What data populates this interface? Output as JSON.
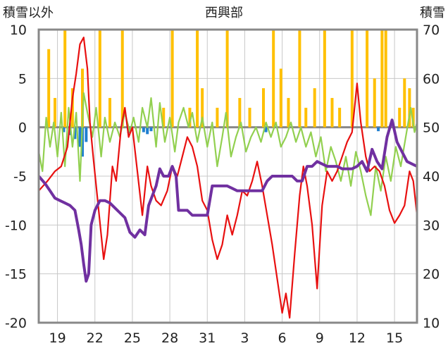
{
  "chart_data": {
    "type": "line",
    "title": "西興部",
    "left_axis": {
      "label": "積雪以外",
      "ticks": [
        "10",
        "5",
        "0",
        "-5",
        "-10",
        "-15",
        "-20"
      ],
      "ylim": [
        -20,
        10
      ]
    },
    "right_axis": {
      "label": "積雪",
      "ticks": [
        "70",
        "60",
        "50",
        "40",
        "30",
        "20",
        "10"
      ],
      "ylim": [
        10,
        70
      ]
    },
    "x_ticks": [
      "19",
      "22",
      "25",
      "28",
      "31",
      "3",
      "6",
      "9",
      "12",
      "15"
    ],
    "xlim": [
      17.5,
      47.8
    ],
    "x_tick_positions": [
      19,
      22,
      25,
      28,
      31,
      34,
      37,
      40,
      43,
      46
    ],
    "grid": true,
    "colors": {
      "precipitation": "#ffc000",
      "negative_bars": "#1f7fd0",
      "temperature": "#e81010",
      "green_series": "#92d050",
      "snow_depth": "#7030a0",
      "frame": "#888888",
      "zero_line": "#888888"
    },
    "series": [
      {
        "axis": "left",
        "style": "bar",
        "color": "#ffc000",
        "points": [
          [
            18.3,
            8
          ],
          [
            18.8,
            3
          ],
          [
            19.6,
            10
          ],
          [
            20.2,
            4
          ],
          [
            21.0,
            6
          ],
          [
            22.4,
            10
          ],
          [
            23.2,
            3
          ],
          [
            24.2,
            10
          ],
          [
            27.5,
            2
          ],
          [
            28.2,
            10
          ],
          [
            29.6,
            2
          ],
          [
            30.2,
            10
          ],
          [
            30.6,
            4
          ],
          [
            31.8,
            2
          ],
          [
            32.6,
            10
          ],
          [
            33.6,
            3
          ],
          [
            34.4,
            2
          ],
          [
            35.5,
            4
          ],
          [
            36.3,
            10
          ],
          [
            36.9,
            6
          ],
          [
            37.5,
            3
          ],
          [
            38.4,
            10
          ],
          [
            38.9,
            2
          ],
          [
            39.6,
            4
          ],
          [
            40.4,
            10
          ],
          [
            41.0,
            3
          ],
          [
            41.6,
            2
          ],
          [
            42.6,
            10
          ],
          [
            43.8,
            10
          ],
          [
            44.4,
            5
          ],
          [
            45.0,
            10
          ],
          [
            45.3,
            10
          ],
          [
            46.4,
            2
          ],
          [
            46.8,
            5
          ],
          [
            47.2,
            4
          ],
          [
            47.5,
            2
          ]
        ]
      },
      {
        "axis": "left",
        "style": "bar",
        "color": "#1f7fd0",
        "points": [
          [
            19.5,
            -0.5
          ],
          [
            20.0,
            -0.8
          ],
          [
            20.4,
            -1.2
          ],
          [
            20.8,
            -2.0
          ],
          [
            21.0,
            -3.0
          ],
          [
            21.3,
            -1.5
          ],
          [
            24.7,
            -0.6
          ],
          [
            25.9,
            -0.5
          ],
          [
            26.2,
            -0.7
          ],
          [
            26.5,
            -0.4
          ],
          [
            35.7,
            -0.5
          ],
          [
            44.7,
            -0.4
          ]
        ]
      },
      {
        "axis": "left",
        "style": "line",
        "color": "#e81010",
        "points": [
          [
            17.5,
            -6.5
          ],
          [
            18.2,
            -5.5
          ],
          [
            18.8,
            -4.5
          ],
          [
            19.3,
            -4.0
          ],
          [
            19.8,
            -2.0
          ],
          [
            20.2,
            3.0
          ],
          [
            20.5,
            5.5
          ],
          [
            20.8,
            8.5
          ],
          [
            21.1,
            9.2
          ],
          [
            21.4,
            6.0
          ],
          [
            21.6,
            0.5
          ],
          [
            21.9,
            -3.5
          ],
          [
            22.3,
            -8.5
          ],
          [
            22.7,
            -13.5
          ],
          [
            23.0,
            -11.0
          ],
          [
            23.4,
            -4.0
          ],
          [
            23.7,
            -5.5
          ],
          [
            24.1,
            0.0
          ],
          [
            24.4,
            2.0
          ],
          [
            24.7,
            -1.0
          ],
          [
            25.0,
            0.0
          ],
          [
            25.4,
            -4.5
          ],
          [
            25.8,
            -9.0
          ],
          [
            26.2,
            -4.0
          ],
          [
            26.5,
            -6.0
          ],
          [
            26.9,
            -7.5
          ],
          [
            27.3,
            -8.0
          ],
          [
            27.8,
            -6.5
          ],
          [
            28.2,
            -4.0
          ],
          [
            28.6,
            -5.0
          ],
          [
            29.0,
            -3.0
          ],
          [
            29.4,
            -1.0
          ],
          [
            29.8,
            -2.0
          ],
          [
            30.2,
            -4.0
          ],
          [
            30.6,
            -7.5
          ],
          [
            31.0,
            -8.5
          ],
          [
            31.4,
            -11.5
          ],
          [
            31.8,
            -13.5
          ],
          [
            32.2,
            -12.0
          ],
          [
            32.6,
            -9.0
          ],
          [
            33.0,
            -11.0
          ],
          [
            33.4,
            -9.0
          ],
          [
            33.8,
            -6.5
          ],
          [
            34.2,
            -7.0
          ],
          [
            34.6,
            -5.5
          ],
          [
            35.0,
            -3.5
          ],
          [
            35.4,
            -6.0
          ],
          [
            35.8,
            -9.0
          ],
          [
            36.2,
            -12.0
          ],
          [
            36.6,
            -15.5
          ],
          [
            37.0,
            -19.0
          ],
          [
            37.3,
            -17.0
          ],
          [
            37.6,
            -19.5
          ],
          [
            38.0,
            -13.0
          ],
          [
            38.4,
            -7.0
          ],
          [
            38.7,
            -4.0
          ],
          [
            39.0,
            -6.0
          ],
          [
            39.4,
            -10.0
          ],
          [
            39.8,
            -16.5
          ],
          [
            40.2,
            -8.0
          ],
          [
            40.6,
            -4.5
          ],
          [
            41.0,
            -5.5
          ],
          [
            41.4,
            -4.5
          ],
          [
            41.8,
            -3.0
          ],
          [
            42.2,
            -1.5
          ],
          [
            42.6,
            -0.5
          ],
          [
            43.0,
            4.5
          ],
          [
            43.3,
            0.5
          ],
          [
            43.7,
            -3.0
          ],
          [
            44.0,
            -4.5
          ],
          [
            44.4,
            -4.0
          ],
          [
            44.8,
            -4.5
          ],
          [
            45.2,
            -6.0
          ],
          [
            45.6,
            -8.5
          ],
          [
            46.0,
            -9.8
          ],
          [
            46.4,
            -9.0
          ],
          [
            46.8,
            -8.0
          ],
          [
            47.2,
            -4.5
          ],
          [
            47.5,
            -5.5
          ],
          [
            47.8,
            -9.0
          ]
        ]
      },
      {
        "axis": "left",
        "style": "line",
        "color": "#92d050",
        "points": [
          [
            17.5,
            -2.5
          ],
          [
            17.8,
            -4.5
          ],
          [
            18.1,
            1.0
          ],
          [
            18.4,
            -2.0
          ],
          [
            18.7,
            0.5
          ],
          [
            19.0,
            -3.0
          ],
          [
            19.3,
            1.5
          ],
          [
            19.6,
            -4.0
          ],
          [
            19.9,
            2.0
          ],
          [
            20.2,
            -2.0
          ],
          [
            20.5,
            1.5
          ],
          [
            20.8,
            -5.5
          ],
          [
            21.1,
            3.5
          ],
          [
            21.4,
            1.5
          ],
          [
            21.8,
            -1.0
          ],
          [
            22.1,
            2.0
          ],
          [
            22.5,
            -3.0
          ],
          [
            22.8,
            1.0
          ],
          [
            23.2,
            -1.5
          ],
          [
            23.6,
            0.5
          ],
          [
            24.0,
            -1.0
          ],
          [
            24.4,
            1.5
          ],
          [
            24.8,
            -0.5
          ],
          [
            25.1,
            1.0
          ],
          [
            25.5,
            -1.5
          ],
          [
            25.8,
            2.0
          ],
          [
            26.2,
            0.0
          ],
          [
            26.5,
            3.0
          ],
          [
            26.9,
            -2.0
          ],
          [
            27.2,
            2.5
          ],
          [
            27.6,
            -1.5
          ],
          [
            28.0,
            1.0
          ],
          [
            28.4,
            -2.5
          ],
          [
            28.7,
            0.5
          ],
          [
            29.1,
            2.0
          ],
          [
            29.5,
            0.0
          ],
          [
            29.8,
            1.5
          ],
          [
            30.2,
            -1.5
          ],
          [
            30.6,
            1.0
          ],
          [
            31.0,
            -2.0
          ],
          [
            31.4,
            0.5
          ],
          [
            31.8,
            -4.0
          ],
          [
            32.2,
            -1.0
          ],
          [
            32.5,
            1.5
          ],
          [
            32.9,
            -3.0
          ],
          [
            33.3,
            -1.0
          ],
          [
            33.7,
            0.5
          ],
          [
            34.1,
            -2.5
          ],
          [
            34.5,
            -1.0
          ],
          [
            34.9,
            0.0
          ],
          [
            35.3,
            -1.5
          ],
          [
            35.7,
            0.5
          ],
          [
            36.1,
            -1.0
          ],
          [
            36.5,
            0.5
          ],
          [
            36.9,
            -2.0
          ],
          [
            37.3,
            -1.0
          ],
          [
            37.7,
            0.5
          ],
          [
            38.1,
            -1.5
          ],
          [
            38.5,
            0.0
          ],
          [
            38.9,
            -2.0
          ],
          [
            39.3,
            -0.5
          ],
          [
            39.7,
            -3.0
          ],
          [
            40.1,
            -1.0
          ],
          [
            40.5,
            -4.5
          ],
          [
            40.9,
            -2.0
          ],
          [
            41.3,
            -3.5
          ],
          [
            41.7,
            -5.5
          ],
          [
            42.1,
            -3.0
          ],
          [
            42.5,
            -6.0
          ],
          [
            42.9,
            -2.5
          ],
          [
            43.3,
            -4.5
          ],
          [
            43.7,
            -7.0
          ],
          [
            44.1,
            -9.0
          ],
          [
            44.5,
            -4.0
          ],
          [
            44.9,
            -6.5
          ],
          [
            45.3,
            -3.0
          ],
          [
            45.7,
            -5.5
          ],
          [
            46.1,
            -2.0
          ],
          [
            46.5,
            -4.0
          ],
          [
            46.9,
            -1.0
          ],
          [
            47.3,
            2.0
          ],
          [
            47.6,
            -0.5
          ],
          [
            47.8,
            0.5
          ]
        ]
      },
      {
        "axis": "right",
        "style": "line",
        "color": "#7030a0",
        "points": [
          [
            17.5,
            40
          ],
          [
            18.0,
            38.5
          ],
          [
            18.4,
            37
          ],
          [
            18.8,
            35.5
          ],
          [
            19.2,
            35
          ],
          [
            19.6,
            34.5
          ],
          [
            20.0,
            34
          ],
          [
            20.4,
            33
          ],
          [
            20.7,
            29
          ],
          [
            20.9,
            26
          ],
          [
            21.1,
            22
          ],
          [
            21.3,
            18.5
          ],
          [
            21.5,
            20
          ],
          [
            21.7,
            30
          ],
          [
            22.0,
            33
          ],
          [
            22.4,
            35
          ],
          [
            22.8,
            35
          ],
          [
            23.2,
            34.5
          ],
          [
            23.6,
            33.5
          ],
          [
            24.0,
            32.5
          ],
          [
            24.4,
            31.5
          ],
          [
            24.8,
            28.5
          ],
          [
            25.2,
            27.5
          ],
          [
            25.6,
            29
          ],
          [
            26.0,
            28
          ],
          [
            26.3,
            34
          ],
          [
            26.6,
            36
          ],
          [
            26.9,
            38
          ],
          [
            27.2,
            41.5
          ],
          [
            27.5,
            40
          ],
          [
            27.9,
            40
          ],
          [
            28.2,
            42
          ],
          [
            28.5,
            40
          ],
          [
            28.7,
            33
          ],
          [
            29.0,
            33
          ],
          [
            29.4,
            33
          ],
          [
            29.8,
            32
          ],
          [
            30.2,
            32
          ],
          [
            30.6,
            32
          ],
          [
            31.0,
            32
          ],
          [
            31.4,
            38
          ],
          [
            31.8,
            38
          ],
          [
            32.2,
            38
          ],
          [
            32.6,
            38
          ],
          [
            33.0,
            37.5
          ],
          [
            33.4,
            37
          ],
          [
            33.8,
            37
          ],
          [
            34.2,
            37
          ],
          [
            34.6,
            37
          ],
          [
            35.0,
            37
          ],
          [
            35.4,
            37
          ],
          [
            35.8,
            39
          ],
          [
            36.2,
            40
          ],
          [
            36.6,
            40
          ],
          [
            37.0,
            40
          ],
          [
            37.4,
            40
          ],
          [
            37.8,
            40
          ],
          [
            38.2,
            39
          ],
          [
            38.6,
            39
          ],
          [
            39.0,
            42
          ],
          [
            39.4,
            42
          ],
          [
            39.8,
            43
          ],
          [
            40.2,
            42.5
          ],
          [
            40.6,
            42
          ],
          [
            41.0,
            42
          ],
          [
            41.4,
            42
          ],
          [
            41.8,
            41.5
          ],
          [
            42.2,
            41.5
          ],
          [
            42.6,
            41.5
          ],
          [
            43.0,
            42
          ],
          [
            43.4,
            43
          ],
          [
            43.8,
            41
          ],
          [
            44.2,
            45.5
          ],
          [
            44.6,
            43
          ],
          [
            45.0,
            41.5
          ],
          [
            45.4,
            48
          ],
          [
            45.8,
            51.5
          ],
          [
            46.2,
            47
          ],
          [
            46.6,
            45
          ],
          [
            47.0,
            43
          ],
          [
            47.4,
            42.5
          ],
          [
            47.8,
            42
          ]
        ]
      }
    ]
  }
}
